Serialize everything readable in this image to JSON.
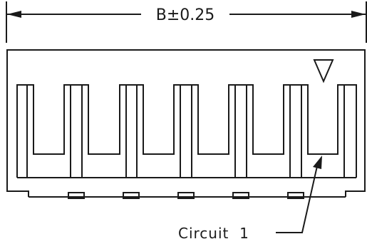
{
  "dimension": {
    "label": "B±0.25"
  },
  "callout": {
    "label": "Circuit  1"
  },
  "marker": {
    "icon": "triangle-down-icon"
  },
  "connector": {
    "slot_count": 6
  },
  "colors": {
    "line": "#1a1a1a",
    "background": "#ffffff"
  }
}
